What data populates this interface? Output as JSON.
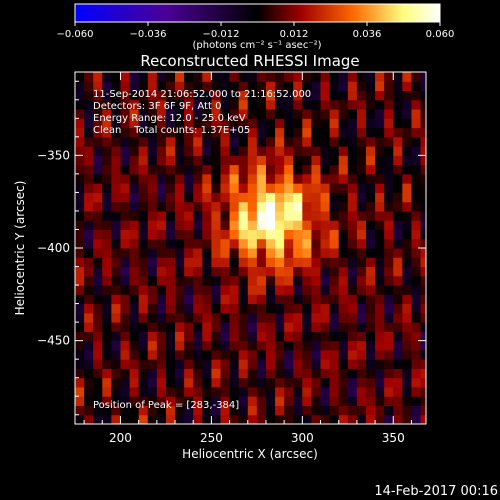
{
  "chart_data": {
    "type": "heatmap",
    "title": "Reconstructed RHESSI Image",
    "xlabel": "Heliocentric X (arcsec)",
    "ylabel": "Heliocentric Y (arcsec)",
    "xlim": [
      175,
      368
    ],
    "ylim": [
      -495,
      -305
    ],
    "xticks": [
      200,
      250,
      300,
      350
    ],
    "yticks": [
      -350,
      -400,
      -450
    ],
    "colorbar": {
      "range": [
        -0.06,
        0.06
      ],
      "ticks": [
        "−0.060",
        "−0.036",
        "−0.012",
        "0.012",
        "0.036",
        "0.060"
      ],
      "unit_label": "(photons cm⁻² s⁻¹ asec⁻²)",
      "colors": [
        "#0000ff",
        "#4b0094",
        "#000000",
        "#a00000",
        "#ff6600",
        "#ffff80",
        "#ffffff"
      ]
    },
    "peak": {
      "x": 283,
      "y": -384
    },
    "annotations": [
      "11-Sep-2014 21:06:52.000 to 21:16:52.000",
      "Detectors: 3F 6F 9F, Att 0",
      "Energy Range: 12.0 - 25.0 keV",
      "Clean    Total counts: 1.37E+05",
      "Position of Peak = [283,-384]"
    ]
  },
  "footer": {
    "timestamp": "14-Feb-2017 00:16"
  }
}
